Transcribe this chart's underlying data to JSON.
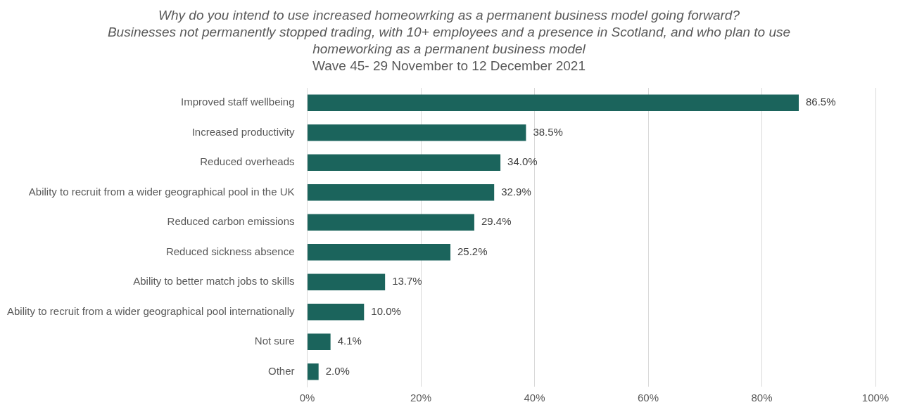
{
  "chart_data": {
    "type": "bar",
    "orientation": "horizontal",
    "title": "Why do you intend to use increased homeowrking as a permanent business model going forward?",
    "subtitle": "Businesses not permanently stopped trading, with 10+ employees and a presence in Scotland, and who plan to use homeworking as a permanent business model",
    "annotations": [
      "Wave 45- 29 November to 12 December 2021"
    ],
    "categories": [
      "Improved staff wellbeing",
      "Increased productivity",
      "Reduced overheads",
      "Ability to recruit from a wider geographical pool in the UK",
      "Reduced carbon emissions",
      "Reduced sickness absence",
      "Ability to better match jobs to skills",
      "Ability to recruit from a wider geographical pool internationally",
      "Not sure",
      "Other"
    ],
    "values": [
      86.5,
      38.5,
      34.0,
      32.9,
      29.4,
      25.2,
      13.7,
      10.0,
      4.1,
      2.0
    ],
    "value_labels": [
      "86.5%",
      "38.5%",
      "34.0%",
      "32.9%",
      "29.4%",
      "25.2%",
      "13.7%",
      "10.0%",
      "4.1%",
      "2.0%"
    ],
    "color": "#1b645c",
    "xlim": [
      0,
      100
    ],
    "xticks": [
      {
        "value": 0,
        "label": "0%"
      },
      {
        "value": 20,
        "label": "20%"
      },
      {
        "value": 40,
        "label": "40%"
      },
      {
        "value": 60,
        "label": "60%"
      },
      {
        "value": 80,
        "label": "80%"
      },
      {
        "value": 100,
        "label": "100%"
      }
    ],
    "grid": "x",
    "legend": false
  }
}
